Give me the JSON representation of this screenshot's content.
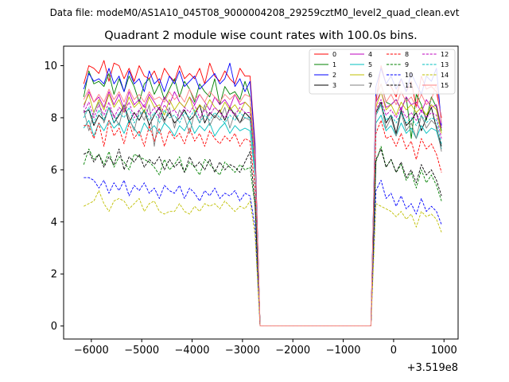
{
  "figure": {
    "suptitle": "Data file: modeM0/AS1A10_045T08_9000004208_29259cztM0_level2_quad_clean.evt",
    "title": "Quadrant 2 module wise count rates with 100.0s bins."
  },
  "chart_data": {
    "type": "line",
    "title": "Quadrant 2 module wise count rates with 100.0s bins.",
    "xlabel": "",
    "ylabel": "",
    "x_offset_label": "+3.519e8",
    "x_offset": 351900000,
    "xlim": [
      -6550,
      1280
    ],
    "ylim": [
      -0.5,
      10.75
    ],
    "xticks": [
      -6000,
      -5000,
      -4000,
      -3000,
      -2000,
      -1000,
      0,
      1000
    ],
    "xtick_labels": [
      "−6000",
      "−5000",
      "−4000",
      "−3000",
      "−2000",
      "−1000",
      "0",
      "1000"
    ],
    "yticks": [
      0,
      2,
      4,
      6,
      8,
      10
    ],
    "ytick_labels": [
      "0",
      "2",
      "4",
      "6",
      "8",
      "10"
    ],
    "grid": false,
    "legend_position": "top-right",
    "legend_columns": 4,
    "segments": [
      {
        "start": -6150,
        "end": -2650,
        "step": 100
      },
      {
        "start": -2550,
        "end": -550,
        "step": 100
      },
      {
        "start": -450,
        "end": 950,
        "step": 100
      }
    ],
    "gap_value": 0,
    "series": [
      {
        "name": "0",
        "color": "#ff0000",
        "dash": false,
        "seg1": [
          9.3,
          10.0,
          9.9,
          9.7,
          10.2,
          9.4,
          10.1,
          10.0,
          9.5,
          9.9,
          9.4,
          10.0,
          9.6,
          9.5,
          9.8,
          9.3,
          9.9,
          9.6,
          9.4,
          10.0,
          9.5,
          9.7,
          9.5,
          9.9,
          9.3,
          10.1,
          9.6,
          9.4,
          9.8,
          9.5,
          9.3,
          9.9,
          9.6,
          9.6,
          7.0,
          0.0
        ],
        "seg3": [
          0.0,
          8.6,
          10.0,
          9.3,
          9.2,
          8.8,
          9.5,
          9.0,
          9.4,
          8.4,
          9.6,
          9.1,
          9.2,
          9.0,
          8.0
        ]
      },
      {
        "name": "1",
        "color": "#008000",
        "dash": false,
        "seg1": [
          8.8,
          9.8,
          9.3,
          9.4,
          9.2,
          9.7,
          8.9,
          9.5,
          9.0,
          9.6,
          9.2,
          8.6,
          9.3,
          9.5,
          8.9,
          9.3,
          8.7,
          9.1,
          9.5,
          8.8,
          9.4,
          9.1,
          8.6,
          9.3,
          9.0,
          8.8,
          9.5,
          8.5,
          9.2,
          8.9,
          9.0,
          8.7,
          9.4,
          8.8,
          6.6,
          0.0
        ],
        "seg3": [
          0.0,
          8.8,
          9.3,
          8.6,
          8.5,
          8.7,
          8.3,
          8.8,
          7.2,
          8.9,
          8.5,
          7.9,
          8.8,
          8.4,
          7.5
        ]
      },
      {
        "name": "2",
        "color": "#0000ff",
        "dash": false,
        "seg1": [
          9.1,
          9.7,
          9.4,
          9.5,
          9.3,
          9.9,
          9.3,
          9.6,
          9.0,
          9.8,
          9.3,
          9.5,
          9.0,
          9.8,
          9.3,
          9.5,
          9.0,
          9.6,
          9.3,
          9.8,
          9.2,
          9.4,
          9.6,
          9.1,
          9.3,
          9.5,
          9.7,
          9.3,
          9.5,
          10.1,
          9.2,
          9.5,
          9.0,
          9.4,
          6.9,
          0.0
        ],
        "seg3": [
          0.0,
          9.2,
          9.9,
          9.3,
          9.6,
          9.1,
          9.5,
          9.0,
          9.7,
          9.3,
          8.9,
          9.6,
          9.4,
          9.9,
          7.7
        ]
      },
      {
        "name": "3",
        "color": "#000000",
        "dash": false,
        "seg1": [
          8.2,
          8.3,
          7.7,
          8.1,
          7.9,
          8.4,
          7.8,
          8.1,
          8.5,
          7.8,
          8.2,
          7.9,
          8.3,
          7.7,
          8.1,
          8.4,
          7.9,
          8.2,
          7.8,
          8.0,
          8.3,
          7.9,
          8.1,
          8.5,
          7.8,
          8.2,
          8.0,
          8.3,
          7.9,
          8.4,
          8.1,
          7.8,
          8.2,
          8.0,
          6.2,
          0.0
        ],
        "seg3": [
          0.0,
          8.2,
          8.6,
          7.8,
          8.1,
          7.4,
          8.3,
          7.7,
          7.9,
          8.2,
          7.5,
          8.0,
          8.4,
          7.6,
          6.9
        ]
      },
      {
        "name": "4",
        "color": "#bf00bf",
        "dash": false,
        "seg1": [
          8.4,
          9.0,
          8.6,
          8.8,
          8.4,
          9.0,
          8.5,
          8.9,
          8.3,
          9.0,
          8.5,
          8.7,
          8.4,
          8.9,
          8.6,
          8.3,
          8.8,
          8.5,
          9.0,
          8.6,
          8.4,
          8.8,
          8.5,
          8.9,
          8.6,
          8.3,
          8.8,
          8.5,
          8.7,
          8.4,
          8.9,
          8.5,
          8.6,
          8.4,
          6.4,
          0.0
        ],
        "seg3": [
          0.0,
          8.6,
          9.0,
          8.4,
          8.5,
          8.7,
          8.3,
          8.8,
          8.5,
          8.6,
          8.2,
          8.7,
          8.4,
          8.5,
          7.6
        ]
      },
      {
        "name": "5",
        "color": "#00bfbf",
        "dash": false,
        "seg1": [
          7.6,
          7.9,
          7.3,
          7.8,
          7.5,
          7.9,
          7.6,
          7.8,
          7.4,
          7.9,
          7.6,
          7.3,
          7.8,
          7.5,
          7.7,
          7.4,
          7.8,
          7.6,
          7.3,
          7.7,
          7.5,
          7.9,
          7.4,
          7.7,
          7.5,
          7.8,
          7.3,
          7.6,
          7.8,
          7.4,
          7.7,
          7.5,
          7.6,
          7.5,
          5.8,
          0.0
        ],
        "seg3": [
          0.0,
          7.8,
          8.1,
          7.5,
          7.7,
          7.3,
          7.8,
          7.4,
          7.6,
          7.2,
          7.7,
          7.4,
          7.6,
          7.5,
          6.8
        ]
      },
      {
        "name": "6",
        "color": "#bfbf00",
        "dash": false,
        "seg1": [
          8.5,
          8.9,
          8.2,
          8.7,
          8.3,
          8.9,
          8.4,
          8.7,
          8.2,
          8.8,
          8.4,
          8.6,
          8.2,
          8.8,
          8.4,
          8.5,
          8.1,
          8.7,
          8.3,
          8.6,
          8.4,
          8.8,
          8.2,
          8.5,
          8.3,
          8.7,
          8.4,
          8.2,
          8.6,
          8.3,
          8.5,
          8.2,
          8.6,
          8.4,
          6.3,
          0.0
        ],
        "seg3": [
          0.0,
          8.4,
          9.0,
          8.3,
          8.5,
          8.1,
          8.6,
          8.3,
          8.5,
          8.2,
          8.4,
          8.1,
          8.5,
          8.3,
          7.4
        ]
      },
      {
        "name": "7",
        "color": "#808080",
        "dash": false,
        "seg1": [
          8.3,
          7.5,
          8.2,
          8.6,
          7.8,
          8.4,
          8.1,
          7.7,
          8.5,
          8.0,
          7.5,
          8.3,
          7.9,
          8.5,
          6.9,
          8.2,
          7.8,
          8.4,
          7.6,
          8.3,
          8.0,
          7.4,
          8.2,
          7.8,
          8.5,
          7.7,
          8.1,
          7.9,
          8.4,
          7.6,
          8.2,
          7.8,
          8.0,
          7.9,
          6.0,
          0.0
        ],
        "seg3": [
          0.0,
          8.1,
          8.5,
          7.6,
          8.0,
          7.3,
          8.2,
          7.5,
          7.8,
          7.2,
          8.1,
          7.6,
          7.9,
          7.7,
          6.7
        ]
      },
      {
        "name": "8",
        "color": "#ff0000",
        "dash": true,
        "seg1": [
          7.7,
          7.7,
          7.2,
          7.8,
          6.9,
          7.9,
          7.3,
          7.6,
          7.0,
          7.8,
          7.2,
          7.5,
          6.9,
          7.7,
          7.1,
          7.6,
          6.9,
          7.5,
          7.2,
          7.4,
          7.0,
          7.6,
          7.1,
          7.4,
          6.9,
          7.5,
          7.2,
          7.0,
          7.3,
          7.1,
          7.4,
          6.9,
          7.2,
          7.1,
          5.3,
          0.0
        ],
        "seg3": [
          0.0,
          7.4,
          7.9,
          7.2,
          7.3,
          6.9,
          7.4,
          6.8,
          7.1,
          6.4,
          7.2,
          6.8,
          7.0,
          6.6,
          5.9
        ]
      },
      {
        "name": "9",
        "color": "#008000",
        "dash": true,
        "seg1": [
          6.2,
          6.8,
          6.4,
          6.6,
          6.2,
          6.7,
          6.1,
          6.5,
          6.3,
          6.0,
          6.6,
          6.5,
          6.4,
          6.3,
          6.1,
          5.8,
          6.4,
          6.0,
          6.2,
          6.5,
          5.9,
          6.3,
          6.1,
          5.8,
          6.4,
          6.2,
          6.0,
          5.8,
          6.3,
          6.1,
          5.9,
          6.2,
          6.0,
          6.1,
          4.6,
          0.0
        ],
        "seg3": [
          0.0,
          6.3,
          6.9,
          6.1,
          6.4,
          5.9,
          6.2,
          5.6,
          5.9,
          5.3,
          6.0,
          5.5,
          5.8,
          5.4,
          4.8
        ]
      },
      {
        "name": "10",
        "color": "#0000ff",
        "dash": true,
        "seg1": [
          5.7,
          5.7,
          5.6,
          5.3,
          5.6,
          5.1,
          5.5,
          5.2,
          5.6,
          5.0,
          5.4,
          5.2,
          5.5,
          5.1,
          5.3,
          4.9,
          5.4,
          5.2,
          5.1,
          5.4,
          4.9,
          5.3,
          5.1,
          4.8,
          5.2,
          5.0,
          5.3,
          4.9,
          5.1,
          5.0,
          5.2,
          4.8,
          5.1,
          5.0,
          3.8,
          0.0
        ],
        "seg3": [
          0.0,
          5.2,
          5.6,
          4.9,
          5.1,
          4.6,
          5.0,
          4.5,
          4.7,
          4.3,
          4.9,
          4.4,
          4.6,
          4.4,
          3.9
        ]
      },
      {
        "name": "11",
        "color": "#000000",
        "dash": true,
        "seg1": [
          6.6,
          6.7,
          6.3,
          6.6,
          6.1,
          6.5,
          6.2,
          6.8,
          6.0,
          6.5,
          6.3,
          6.6,
          6.1,
          6.4,
          6.2,
          6.5,
          6.0,
          6.4,
          6.1,
          6.3,
          5.9,
          6.5,
          6.1,
          6.3,
          6.0,
          6.4,
          5.9,
          6.3,
          6.0,
          6.2,
          6.1,
          5.9,
          6.3,
          6.7,
          4.7,
          0.0
        ],
        "seg3": [
          0.0,
          6.4,
          6.8,
          6.1,
          6.4,
          5.9,
          6.3,
          5.7,
          6.0,
          5.5,
          6.2,
          5.8,
          6.0,
          5.6,
          5.0
        ]
      },
      {
        "name": "12",
        "color": "#bf00bf",
        "dash": true,
        "seg1": [
          8.2,
          8.6,
          8.0,
          8.5,
          8.1,
          8.6,
          8.0,
          8.4,
          8.2,
          8.6,
          8.0,
          8.3,
          8.5,
          8.1,
          8.4,
          8.0,
          8.5,
          8.2,
          8.3,
          8.0,
          8.4,
          8.2,
          8.5,
          8.0,
          8.3,
          8.1,
          8.4,
          8.2,
          8.0,
          8.3,
          8.1,
          8.4,
          8.2,
          8.2,
          6.2,
          0.0
        ],
        "seg3": [
          0.0,
          8.3,
          8.7,
          8.1,
          8.3,
          8.0,
          8.4,
          8.0,
          8.2,
          7.9,
          8.3,
          8.0,
          8.2,
          8.1,
          7.2
        ]
      },
      {
        "name": "13",
        "color": "#00bfbf",
        "dash": true,
        "seg1": [
          8.0,
          8.4,
          7.8,
          8.3,
          7.9,
          8.4,
          7.8,
          8.2,
          8.0,
          8.4,
          7.8,
          8.1,
          8.3,
          7.9,
          8.2,
          7.8,
          8.3,
          8.0,
          8.1,
          7.8,
          8.2,
          8.0,
          8.3,
          7.8,
          8.1,
          7.9,
          8.2,
          8.0,
          7.8,
          8.1,
          7.9,
          8.2,
          8.0,
          8.0,
          6.0,
          0.0
        ],
        "seg3": [
          0.0,
          8.1,
          8.5,
          7.9,
          8.1,
          7.8,
          8.2,
          7.8,
          8.0,
          7.7,
          8.1,
          7.8,
          8.0,
          7.9,
          7.0
        ]
      },
      {
        "name": "14",
        "color": "#bfbf00",
        "dash": true,
        "seg1": [
          4.6,
          4.7,
          4.8,
          5.2,
          4.7,
          4.4,
          4.8,
          4.9,
          4.8,
          4.5,
          4.7,
          4.9,
          4.4,
          4.7,
          4.8,
          4.4,
          4.3,
          4.4,
          4.4,
          4.7,
          4.4,
          4.3,
          4.6,
          4.4,
          4.7,
          4.6,
          4.7,
          4.5,
          4.8,
          4.6,
          4.4,
          4.6,
          4.5,
          4.8,
          3.5,
          0.0
        ],
        "seg3": [
          0.0,
          4.7,
          4.6,
          4.5,
          4.4,
          4.2,
          4.4,
          4.1,
          4.3,
          3.8,
          4.4,
          4.2,
          4.3,
          4.1,
          3.6
        ]
      },
      {
        "name": "15",
        "color": "#ff7f7f",
        "dash": false,
        "seg1": [
          8.7,
          9.1,
          8.6,
          8.9,
          8.6,
          9.1,
          8.7,
          9.0,
          8.6,
          9.1,
          8.7,
          8.9,
          8.6,
          9.0,
          8.7,
          8.8,
          8.6,
          9.0,
          8.7,
          8.9,
          8.6,
          9.1,
          8.7,
          8.9,
          8.6,
          9.0,
          8.8,
          8.6,
          8.9,
          8.7,
          8.9,
          8.6,
          8.9,
          8.8,
          6.6,
          0.0
        ],
        "seg3": [
          0.0,
          8.8,
          9.3,
          8.6,
          8.9,
          8.5,
          9.0,
          8.6,
          8.8,
          8.4,
          8.9,
          8.5,
          8.7,
          9.3,
          7.8
        ]
      }
    ]
  }
}
